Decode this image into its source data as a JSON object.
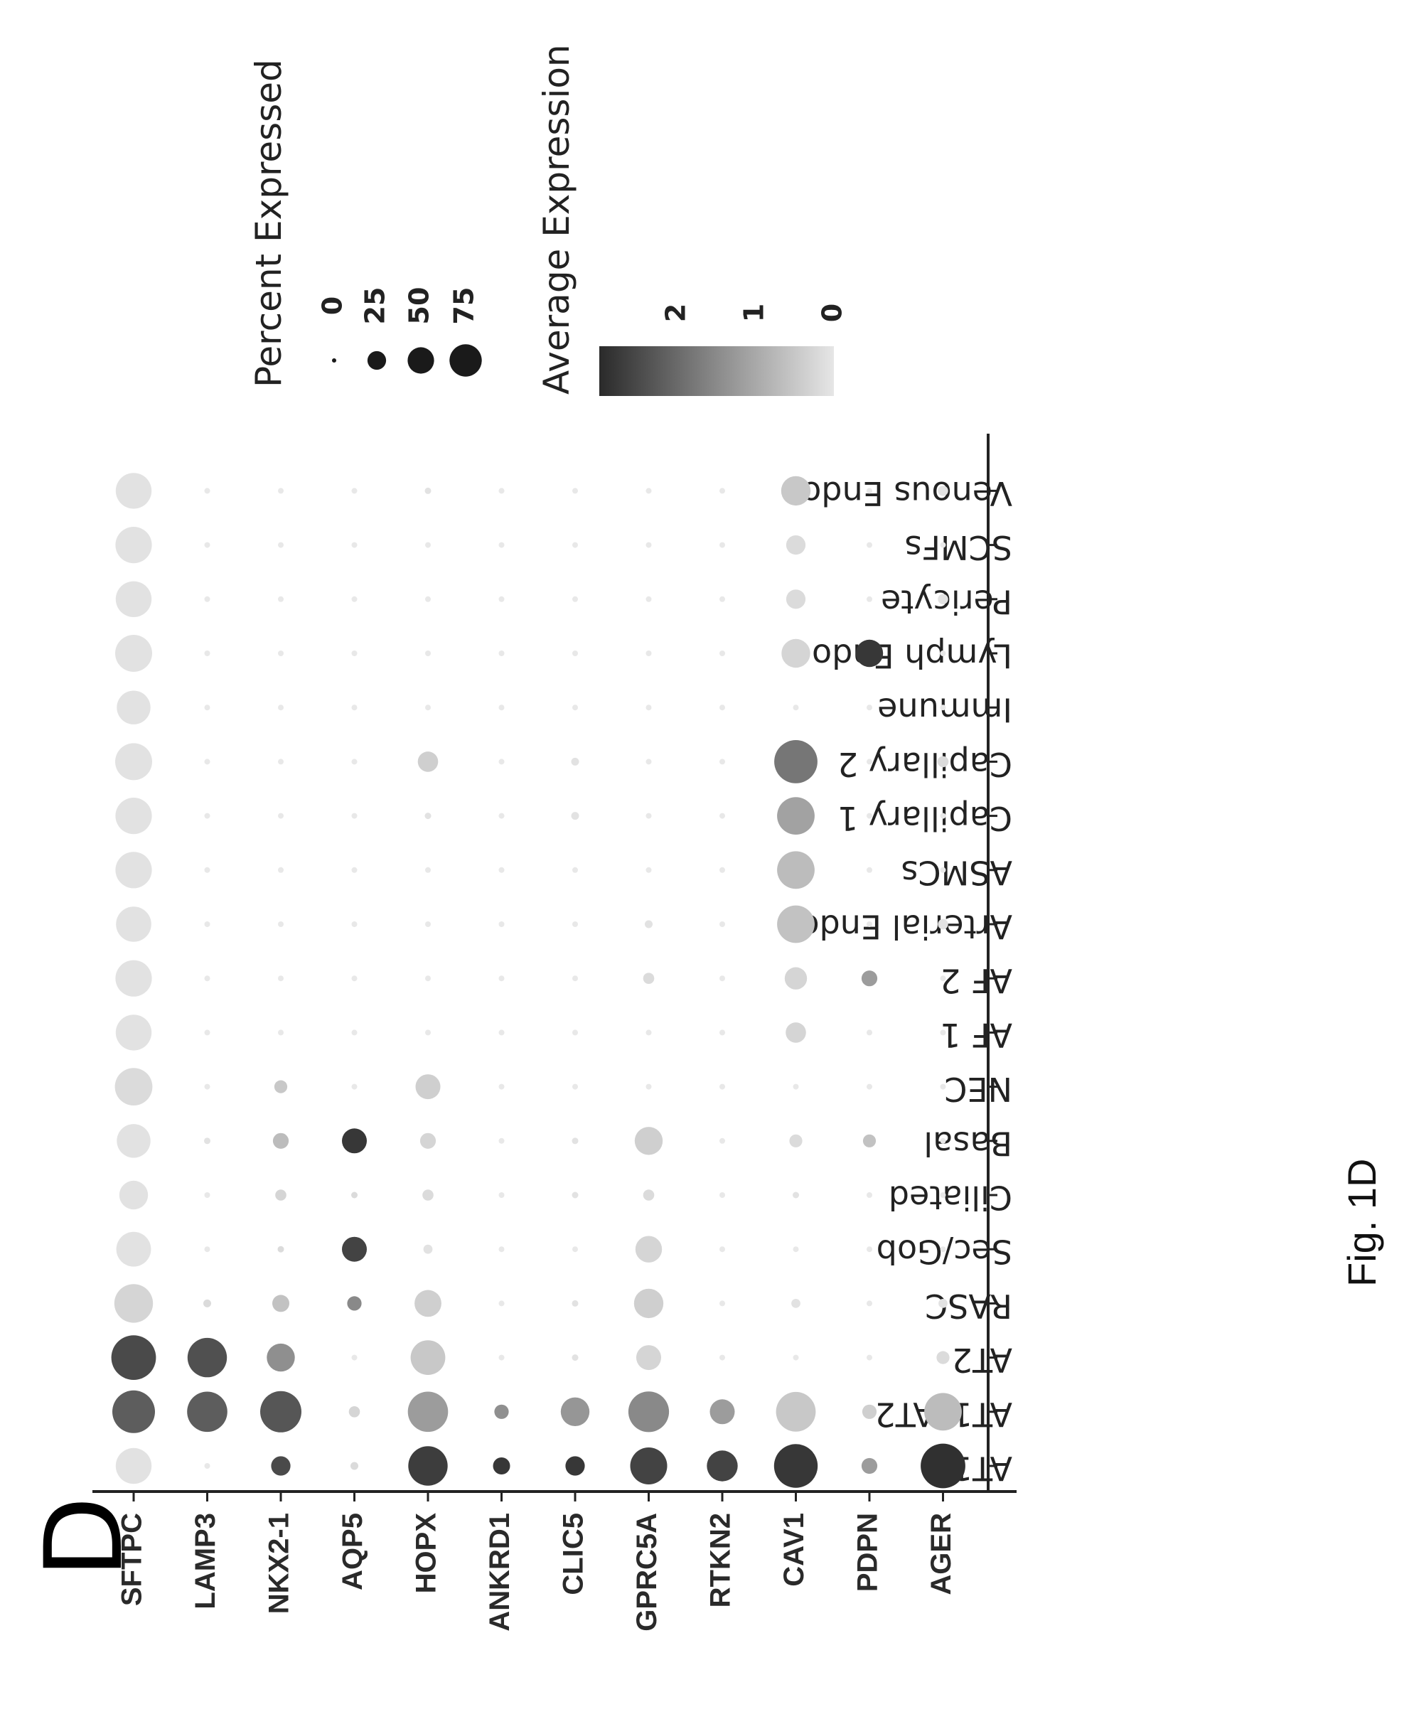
{
  "panel_label": "D",
  "caption": "Fig. 1D",
  "chart_data": {
    "type": "dotplot",
    "orientation_note": "figure rotated 90 degrees in the page",
    "genes": [
      "SFTPC",
      "LAMP3",
      "NKX2-1",
      "AQP5",
      "HOPX",
      "ANKRD1",
      "CLIC5",
      "GPRC5A",
      "RTKN2",
      "CAV1",
      "PDPN",
      "AGER"
    ],
    "cell_types": [
      "AT1",
      "AT1_AT2",
      "AT2",
      "RASC",
      "Sec/Gob",
      "Ciliated",
      "Basal",
      "NEC",
      "AF 1",
      "AF 2",
      "Arterial Endo",
      "ASMCs",
      "Capillary 1",
      "Capillary 2",
      "Immune",
      "Lymph Endo",
      "Pericyte",
      "SCMFs",
      "Venous Endo"
    ],
    "percent_expressed": [
      [
        62,
        88,
        96,
        72,
        58,
        40,
        55,
        68,
        62,
        64,
        60,
        64,
        64,
        66,
        55,
        66,
        62,
        64,
        62
      ],
      [
        0,
        78,
        75,
        3,
        0,
        0,
        2,
        0,
        0,
        0,
        0,
        0,
        0,
        0,
        0,
        0,
        0,
        0,
        0
      ],
      [
        18,
        82,
        38,
        14,
        2,
        6,
        12,
        8,
        0,
        0,
        0,
        0,
        0,
        0,
        0,
        0,
        0,
        0,
        0
      ],
      [
        3,
        6,
        0,
        10,
        30,
        2,
        30,
        0,
        0,
        0,
        0,
        0,
        0,
        0,
        0,
        0,
        0,
        0,
        0
      ],
      [
        75,
        78,
        58,
        35,
        4,
        6,
        12,
        30,
        0,
        0,
        0,
        0,
        2,
        20,
        0,
        0,
        0,
        0,
        2
      ],
      [
        14,
        10,
        0,
        0,
        0,
        0,
        0,
        0,
        0,
        0,
        0,
        0,
        0,
        0,
        0,
        0,
        0,
        0,
        0
      ],
      [
        18,
        40,
        2,
        2,
        0,
        2,
        2,
        0,
        0,
        0,
        0,
        0,
        3,
        3,
        0,
        0,
        0,
        0,
        0
      ],
      [
        66,
        80,
        30,
        42,
        34,
        6,
        38,
        0,
        0,
        6,
        3,
        0,
        0,
        0,
        0,
        0,
        0,
        0,
        0
      ],
      [
        46,
        30,
        0,
        0,
        0,
        0,
        0,
        0,
        0,
        0,
        0,
        0,
        0,
        0,
        0,
        0,
        0,
        0,
        0
      ],
      [
        92,
        76,
        0,
        4,
        0,
        2,
        8,
        0,
        20,
        24,
        68,
        68,
        68,
        90,
        0,
        40,
        18,
        18,
        42
      ],
      [
        12,
        10,
        0,
        0,
        0,
        0,
        8,
        0,
        0,
        12,
        0,
        0,
        0,
        0,
        0,
        36,
        0,
        0,
        0
      ],
      [
        96,
        68,
        8,
        4,
        0,
        0,
        0,
        0,
        0,
        0,
        5,
        0,
        0,
        6,
        0,
        0,
        5,
        0,
        5
      ]
    ],
    "average_expression": [
      [
        0.1,
        2.2,
        2.5,
        0.3,
        0.1,
        0.1,
        0.1,
        0.2,
        0.1,
        0.1,
        0.1,
        0.1,
        0.1,
        0.1,
        0.1,
        0.1,
        0.1,
        0.1,
        0.1
      ],
      [
        0.0,
        2.2,
        2.4,
        0.2,
        0.0,
        0.0,
        0.1,
        0.0,
        0.0,
        0.0,
        0.0,
        0.0,
        0.0,
        0.0,
        0.0,
        0.0,
        0.0,
        0.0,
        0.0
      ],
      [
        2.5,
        2.3,
        1.4,
        0.6,
        0.2,
        0.3,
        0.7,
        0.5,
        0.0,
        0.0,
        0.0,
        0.0,
        0.0,
        0.0,
        0.0,
        0.0,
        0.0,
        0.0,
        0.0
      ],
      [
        0.2,
        0.3,
        0.0,
        1.5,
        2.6,
        0.2,
        2.8,
        0.0,
        0.0,
        0.0,
        0.0,
        0.0,
        0.0,
        0.0,
        0.0,
        0.0,
        0.0,
        0.0,
        0.0
      ],
      [
        2.7,
        1.2,
        0.5,
        0.4,
        0.1,
        0.2,
        0.3,
        0.4,
        0.0,
        0.0,
        0.0,
        0.0,
        0.1,
        0.4,
        0.0,
        0.0,
        0.0,
        0.0,
        0.1
      ],
      [
        2.8,
        1.4,
        0.0,
        0.0,
        0.0,
        0.0,
        0.0,
        0.0,
        0.0,
        0.0,
        0.0,
        0.0,
        0.0,
        0.0,
        0.0,
        0.0,
        0.0,
        0.0,
        0.0
      ],
      [
        2.8,
        1.3,
        0.1,
        0.1,
        0.0,
        0.1,
        0.1,
        0.0,
        0.0,
        0.0,
        0.0,
        0.0,
        0.1,
        0.1,
        0.0,
        0.0,
        0.0,
        0.0,
        0.0
      ],
      [
        2.6,
        1.5,
        0.3,
        0.4,
        0.3,
        0.2,
        0.4,
        0.0,
        0.0,
        0.2,
        0.1,
        0.0,
        0.0,
        0.0,
        0.0,
        0.0,
        0.0,
        0.0,
        0.0
      ],
      [
        2.6,
        1.2,
        0.0,
        0.0,
        0.0,
        0.0,
        0.0,
        0.0,
        0.0,
        0.0,
        0.0,
        0.0,
        0.0,
        0.0,
        0.0,
        0.0,
        0.0,
        0.0,
        0.0
      ],
      [
        2.8,
        0.5,
        0.0,
        0.1,
        0.0,
        0.1,
        0.2,
        0.0,
        0.3,
        0.3,
        0.6,
        0.7,
        1.1,
        1.8,
        0.0,
        0.3,
        0.2,
        0.2,
        0.5
      ],
      [
        1.2,
        0.4,
        0.0,
        0.0,
        0.0,
        0.0,
        0.6,
        0.0,
        0.0,
        1.2,
        0.0,
        0.0,
        0.0,
        0.0,
        0.0,
        2.8,
        0.0,
        0.0,
        0.0
      ],
      [
        2.9,
        0.7,
        0.2,
        0.1,
        0.0,
        0.0,
        0.0,
        0.0,
        0.0,
        0.0,
        0.1,
        0.0,
        0.0,
        0.2,
        0.0,
        0.0,
        0.1,
        0.0,
        0.1
      ]
    ],
    "size_legend": {
      "title": "Percent Expressed",
      "ticks": [
        "0",
        "25",
        "50",
        "75"
      ],
      "values": [
        0,
        25,
        50,
        75
      ]
    },
    "color_legend": {
      "title": "Average Expression",
      "ticks": [
        "2",
        "1",
        "0"
      ],
      "values": [
        2,
        1,
        0
      ],
      "range": [
        0,
        3
      ],
      "color_high": "#2a2a2a",
      "color_low": "#e6e6e6"
    },
    "legend_placement": "right",
    "grid": false
  }
}
